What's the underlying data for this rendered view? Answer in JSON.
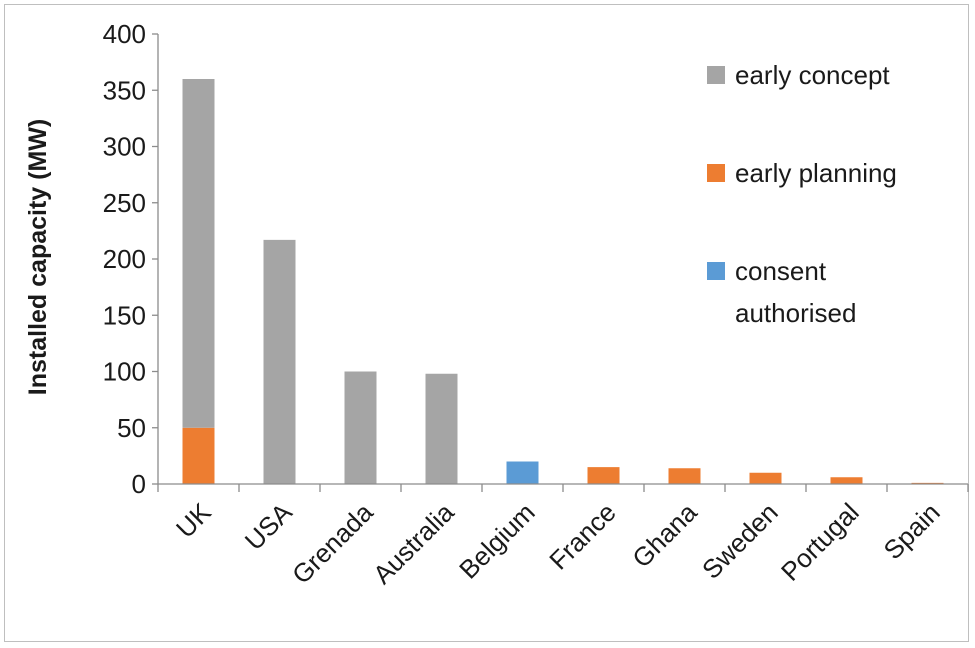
{
  "chart_data": {
    "type": "bar",
    "stacked": true,
    "title": "",
    "xlabel": "",
    "ylabel": "Installed capacity (MW)",
    "ylim": [
      0,
      400
    ],
    "yticks": [
      0,
      50,
      100,
      150,
      200,
      250,
      300,
      350,
      400
    ],
    "grid": false,
    "legend_position": "top-right",
    "categories": [
      "UK",
      "USA",
      "Grenada",
      "Australia",
      "Belgium",
      "France",
      "Ghana",
      "Sweden",
      "Portugal",
      "Spain"
    ],
    "series": [
      {
        "name": "consent authorised",
        "legend_lines": [
          "consent",
          "authorised"
        ],
        "color": "#5b9bd5",
        "values": [
          0,
          0,
          0,
          0,
          20,
          0,
          0,
          0,
          0,
          0
        ]
      },
      {
        "name": "early planning",
        "legend_lines": [
          "early planning"
        ],
        "color": "#ed7d31",
        "values": [
          50,
          0,
          0,
          0,
          0,
          15,
          14,
          10,
          6,
          1
        ]
      },
      {
        "name": "early concept",
        "legend_lines": [
          "early concept"
        ],
        "color": "#a5a5a5",
        "values": [
          310,
          217,
          100,
          98,
          0,
          0,
          0,
          0,
          0,
          0
        ]
      }
    ],
    "legend_order": [
      "early concept",
      "early planning",
      "consent authorised"
    ]
  }
}
